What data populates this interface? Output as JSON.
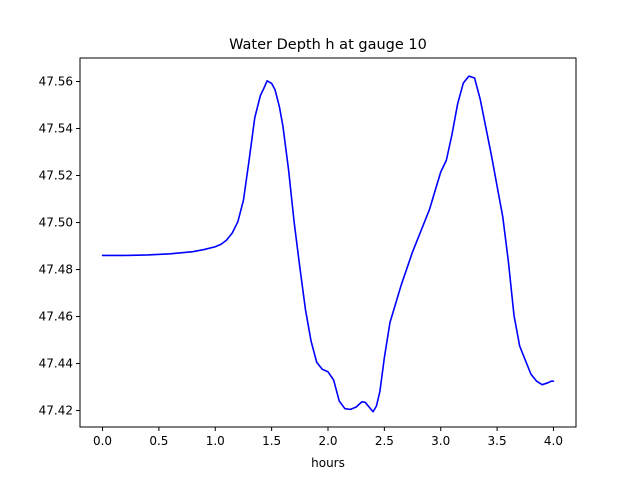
{
  "chart_data": {
    "type": "line",
    "title": "Water Depth h at gauge 10",
    "xlabel": "hours",
    "ylabel": "",
    "xlim": [
      -0.2,
      4.2
    ],
    "ylim": [
      47.413,
      47.57
    ],
    "xticks": [
      0.0,
      0.5,
      1.0,
      1.5,
      2.0,
      2.5,
      3.0,
      3.5,
      4.0
    ],
    "xtick_labels": [
      "0.0",
      "0.5",
      "1.0",
      "1.5",
      "2.0",
      "2.5",
      "3.0",
      "3.5",
      "4.0"
    ],
    "yticks": [
      47.42,
      47.44,
      47.46,
      47.48,
      47.5,
      47.52,
      47.54,
      47.56
    ],
    "ytick_labels": [
      "47.42",
      "47.44",
      "47.46",
      "47.48",
      "47.50",
      "47.52",
      "47.54",
      "47.56"
    ],
    "grid": false,
    "series": [
      {
        "color": "#0000ff",
        "x": [
          0.0,
          0.2,
          0.4,
          0.6,
          0.8,
          0.9,
          1.0,
          1.05,
          1.1,
          1.15,
          1.2,
          1.25,
          1.3,
          1.35,
          1.4,
          1.43,
          1.46,
          1.48,
          1.5,
          1.53,
          1.57,
          1.6,
          1.65,
          1.7,
          1.75,
          1.8,
          1.85,
          1.9,
          1.95,
          2.0,
          2.05,
          2.1,
          2.15,
          2.2,
          2.25,
          2.3,
          2.33,
          2.37,
          2.4,
          2.43,
          2.46,
          2.5,
          2.55,
          2.6,
          2.65,
          2.7,
          2.75,
          2.8,
          2.85,
          2.9,
          2.95,
          3.0,
          3.05,
          3.1,
          3.15,
          3.2,
          3.25,
          3.3,
          3.35,
          3.4,
          3.45,
          3.5,
          3.55,
          3.6,
          3.65,
          3.7,
          3.75,
          3.8,
          3.85,
          3.9,
          3.95,
          3.98,
          4.0
        ],
        "y": [
          47.486,
          47.486,
          47.4862,
          47.4867,
          47.4876,
          47.4885,
          47.4897,
          47.4907,
          47.4925,
          47.4955,
          47.5003,
          47.5095,
          47.5265,
          47.5445,
          47.554,
          47.557,
          47.5603,
          47.5597,
          47.5592,
          47.5565,
          47.549,
          47.541,
          47.5225,
          47.5,
          47.481,
          47.463,
          47.4495,
          47.4405,
          47.4375,
          47.4365,
          47.433,
          47.424,
          47.4208,
          47.4205,
          47.4215,
          47.4237,
          47.4235,
          47.4212,
          47.4195,
          47.422,
          47.428,
          47.4425,
          47.4575,
          47.4655,
          47.4735,
          47.4805,
          47.4875,
          47.4935,
          47.4995,
          47.5055,
          47.5135,
          47.5215,
          47.5265,
          47.5375,
          47.5505,
          47.5593,
          47.5623,
          47.5615,
          47.5525,
          47.5405,
          47.5285,
          47.5155,
          47.5025,
          47.4835,
          47.4605,
          47.4475,
          47.4415,
          47.4355,
          47.4325,
          47.431,
          47.4318,
          47.4325,
          47.4325
        ]
      }
    ]
  }
}
